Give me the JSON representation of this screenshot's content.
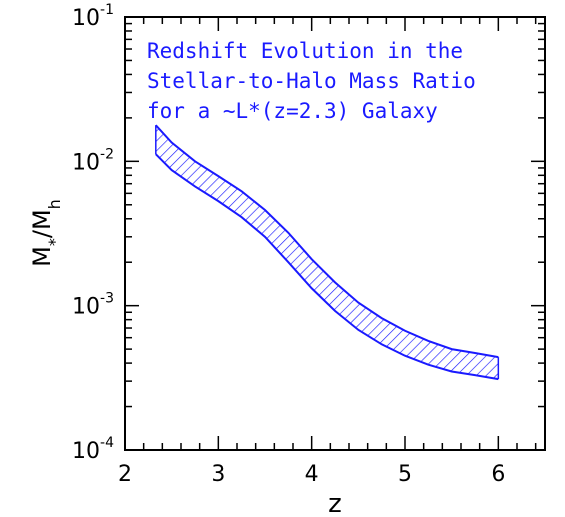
{
  "chart_data": {
    "type": "area",
    "xlabel": "z",
    "ylabel": {
      "base": "M",
      "num_sub": "*",
      "den_sub": "h"
    },
    "xlim": [
      2.0,
      6.5
    ],
    "ylim": [
      0.0001,
      0.1
    ],
    "yscale": "log",
    "x_ticks": [
      "2",
      "3",
      "4",
      "5",
      "6"
    ],
    "y_ticks": [
      {
        "value": 0.1,
        "base": "10",
        "exp": "-1"
      },
      {
        "value": 0.01,
        "base": "10",
        "exp": "-2"
      },
      {
        "value": 0.001,
        "base": "10",
        "exp": "-3"
      },
      {
        "value": 0.0001,
        "base": "10",
        "exp": "-4"
      }
    ],
    "annotation": [
      "Redshift Evolution in the",
      "Stellar-to-Halo Mass Ratio",
      "for a ~L*(z=2.3) Galaxy"
    ],
    "band_color": "#1a1aff",
    "band_fill": "hatched",
    "series": [
      {
        "role": "upper-bound",
        "x": [
          2.33,
          2.5,
          2.75,
          3.0,
          3.25,
          3.5,
          3.75,
          4.0,
          4.25,
          4.5,
          4.75,
          5.0,
          5.25,
          5.5,
          5.75,
          6.0
        ],
        "y": [
          0.0178,
          0.0135,
          0.01,
          0.0079,
          0.0062,
          0.0046,
          0.0032,
          0.0021,
          0.00145,
          0.00105,
          0.00082,
          0.00067,
          0.00057,
          0.0005,
          0.00047,
          0.00044
        ]
      },
      {
        "role": "lower-bound",
        "x": [
          2.33,
          2.5,
          2.75,
          3.0,
          3.25,
          3.5,
          3.75,
          4.0,
          4.25,
          4.5,
          4.75,
          5.0,
          5.25,
          5.5,
          5.75,
          6.0
        ],
        "y": [
          0.0112,
          0.0087,
          0.0067,
          0.0053,
          0.0041,
          0.003,
          0.002,
          0.00132,
          0.00092,
          0.00068,
          0.00054,
          0.00045,
          0.00039,
          0.00035,
          0.00033,
          0.00031
        ]
      }
    ]
  }
}
